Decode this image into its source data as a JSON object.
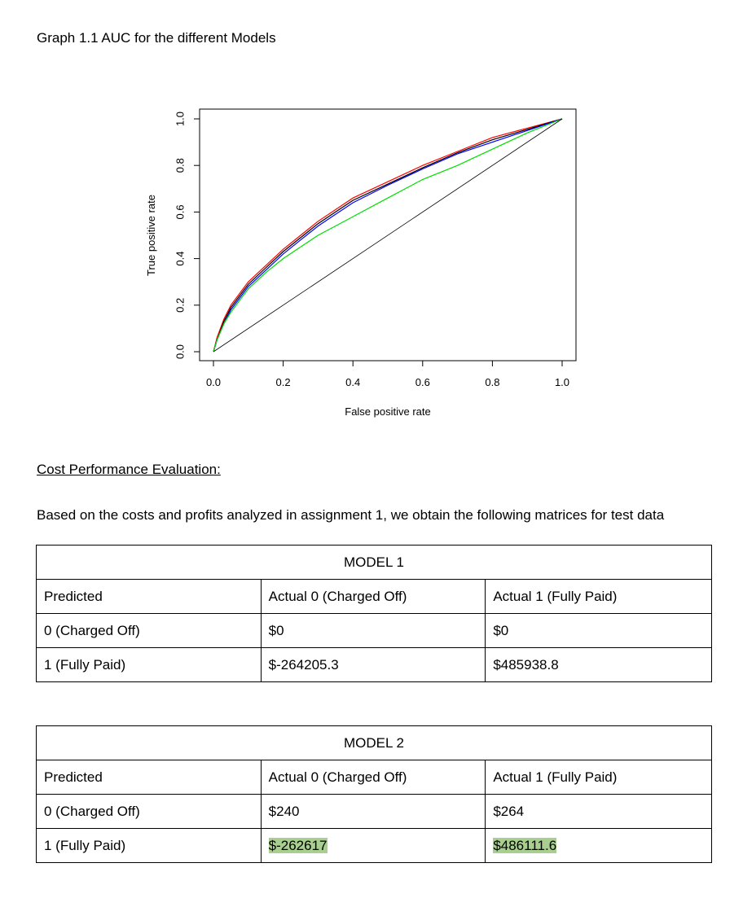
{
  "graph_title": "Graph 1.1 AUC for the different Models",
  "chart_data": {
    "type": "line",
    "title": "",
    "xlabel": "False positive rate",
    "ylabel": "True positive rate",
    "xlim": [
      0,
      1
    ],
    "ylim": [
      0,
      1
    ],
    "x_ticks": [
      "0.0",
      "0.2",
      "0.4",
      "0.6",
      "0.8",
      "1.0"
    ],
    "y_ticks": [
      "0.0",
      "0.2",
      "0.4",
      "0.6",
      "0.8",
      "1.0"
    ],
    "grid": false,
    "legend": "none",
    "series": [
      {
        "color": "#ff0000",
        "x": [
          0,
          0.01,
          0.03,
          0.05,
          0.08,
          0.1,
          0.15,
          0.2,
          0.25,
          0.3,
          0.35,
          0.4,
          0.5,
          0.6,
          0.7,
          0.8,
          0.9,
          1.0
        ],
        "y": [
          0,
          0.06,
          0.14,
          0.2,
          0.26,
          0.3,
          0.37,
          0.44,
          0.5,
          0.56,
          0.61,
          0.66,
          0.73,
          0.8,
          0.86,
          0.92,
          0.96,
          1.0
        ]
      },
      {
        "color": "#000000",
        "x": [
          0,
          0.01,
          0.03,
          0.05,
          0.08,
          0.1,
          0.15,
          0.2,
          0.25,
          0.3,
          0.35,
          0.4,
          0.5,
          0.6,
          0.7,
          0.8,
          0.9,
          1.0
        ],
        "y": [
          0,
          0.05,
          0.13,
          0.19,
          0.25,
          0.29,
          0.36,
          0.43,
          0.49,
          0.55,
          0.6,
          0.65,
          0.72,
          0.79,
          0.855,
          0.91,
          0.955,
          1.0
        ]
      },
      {
        "color": "#0000ff",
        "x": [
          0,
          0.01,
          0.03,
          0.05,
          0.08,
          0.1,
          0.15,
          0.2,
          0.25,
          0.3,
          0.35,
          0.4,
          0.5,
          0.6,
          0.7,
          0.8,
          0.9,
          1.0
        ],
        "y": [
          0,
          0.05,
          0.12,
          0.18,
          0.24,
          0.28,
          0.35,
          0.42,
          0.48,
          0.54,
          0.59,
          0.64,
          0.715,
          0.785,
          0.85,
          0.9,
          0.95,
          1.0
        ]
      },
      {
        "color": "#00dd00",
        "x": [
          0,
          0.01,
          0.03,
          0.05,
          0.08,
          0.1,
          0.15,
          0.2,
          0.25,
          0.3,
          0.35,
          0.4,
          0.5,
          0.6,
          0.7,
          0.8,
          0.9,
          1.0
        ],
        "y": [
          0,
          0.05,
          0.12,
          0.17,
          0.23,
          0.27,
          0.34,
          0.4,
          0.45,
          0.5,
          0.54,
          0.58,
          0.66,
          0.74,
          0.8,
          0.87,
          0.94,
          1.0
        ]
      },
      {
        "color": "#000000",
        "x": [
          0,
          1
        ],
        "y": [
          0,
          1
        ]
      }
    ]
  },
  "section_heading": "Cost Performance Evaluation:",
  "intro": "Based on the costs and profits analyzed in assignment 1, we obtain the following matrices for test data",
  "model1": {
    "title": "MODEL 1",
    "header": [
      "Predicted",
      "Actual 0 (Charged Off)",
      "Actual 1 (Fully Paid)"
    ],
    "rows": [
      [
        "0 (Charged Off)",
        "$0",
        "$0"
      ],
      [
        "1 (Fully Paid)",
        "$-264205.3",
        "$485938.8"
      ]
    ]
  },
  "model2": {
    "title": "MODEL 2",
    "header": [
      "Predicted",
      "Actual 0 (Charged Off)",
      "Actual 1 (Fully Paid)"
    ],
    "rows": [
      [
        "0 (Charged Off)",
        "$240",
        "$264"
      ],
      [
        "1 (Fully Paid)",
        "$-262617",
        "$486111.6"
      ]
    ],
    "highlight_color": "#a8cf8f"
  }
}
